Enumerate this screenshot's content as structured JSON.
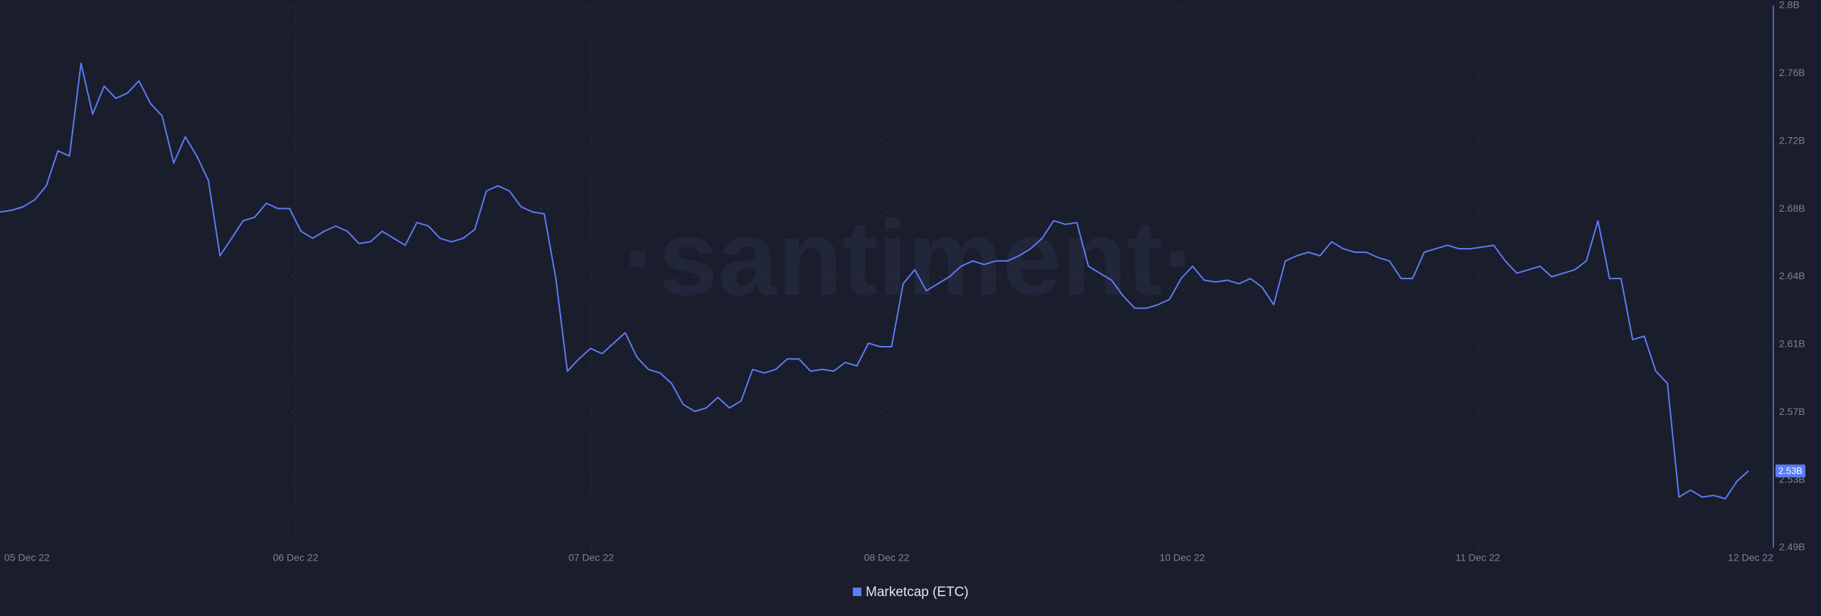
{
  "chart_data": {
    "type": "line",
    "watermark": "·santiment·",
    "xlabels": [
      "05 Dec 22",
      "06 Dec 22",
      "07 Dec 22",
      "08 Dec 22",
      "10 Dec 22",
      "11 Dec 22",
      "12 Dec 22"
    ],
    "ylim": [
      2.49,
      2.8
    ],
    "yticks": [
      {
        "value": 2.49,
        "label": "2.49B"
      },
      {
        "value": 2.52875,
        "label": "2.53B"
      },
      {
        "value": 2.5675,
        "label": "2.57B"
      },
      {
        "value": 2.60625,
        "label": "2.61B"
      },
      {
        "value": 2.645,
        "label": "2.64B"
      },
      {
        "value": 2.68375,
        "label": "2.68B"
      },
      {
        "value": 2.7225,
        "label": "2.72B"
      },
      {
        "value": 2.76125,
        "label": "2.76B"
      },
      {
        "value": 2.8,
        "label": "2.8B"
      }
    ],
    "grid": true,
    "current_value": 2.534,
    "current_label": "2.53B",
    "series": [
      {
        "name": "Marketcap (ETC)",
        "color": "#5b7cf5",
        "values": [
          2.682,
          2.683,
          2.685,
          2.689,
          2.697,
          2.717,
          2.714,
          2.767,
          2.738,
          2.754,
          2.747,
          2.75,
          2.757,
          2.744,
          2.737,
          2.71,
          2.725,
          2.714,
          2.7,
          2.657,
          2.667,
          2.677,
          2.679,
          2.687,
          2.684,
          2.684,
          2.671,
          2.667,
          2.671,
          2.674,
          2.671,
          2.664,
          2.665,
          2.671,
          2.667,
          2.663,
          2.676,
          2.674,
          2.667,
          2.665,
          2.667,
          2.672,
          2.694,
          2.697,
          2.694,
          2.685,
          2.682,
          2.681,
          2.644,
          2.591,
          2.598,
          2.604,
          2.601,
          2.607,
          2.613,
          2.599,
          2.592,
          2.59,
          2.584,
          2.572,
          2.568,
          2.57,
          2.576,
          2.57,
          2.574,
          2.592,
          2.59,
          2.592,
          2.598,
          2.598,
          2.591,
          2.592,
          2.591,
          2.596,
          2.594,
          2.607,
          2.605,
          2.605,
          2.641,
          2.649,
          2.637,
          2.641,
          2.645,
          2.651,
          2.654,
          2.652,
          2.654,
          2.654,
          2.657,
          2.661,
          2.667,
          2.677,
          2.675,
          2.676,
          2.651,
          2.647,
          2.643,
          2.634,
          2.627,
          2.627,
          2.629,
          2.632,
          2.644,
          2.651,
          2.643,
          2.642,
          2.643,
          2.641,
          2.644,
          2.639,
          2.629,
          2.654,
          2.657,
          2.659,
          2.657,
          2.665,
          2.661,
          2.659,
          2.659,
          2.656,
          2.654,
          2.644,
          2.644,
          2.659,
          2.661,
          2.663,
          2.661,
          2.661,
          2.662,
          2.663,
          2.654,
          2.647,
          2.649,
          2.651,
          2.645,
          2.647,
          2.649,
          2.654,
          2.677,
          2.644,
          2.644,
          2.609,
          2.611,
          2.591,
          2.584,
          2.519,
          2.523,
          2.519,
          2.52,
          2.518,
          2.528,
          2.534
        ]
      }
    ]
  }
}
